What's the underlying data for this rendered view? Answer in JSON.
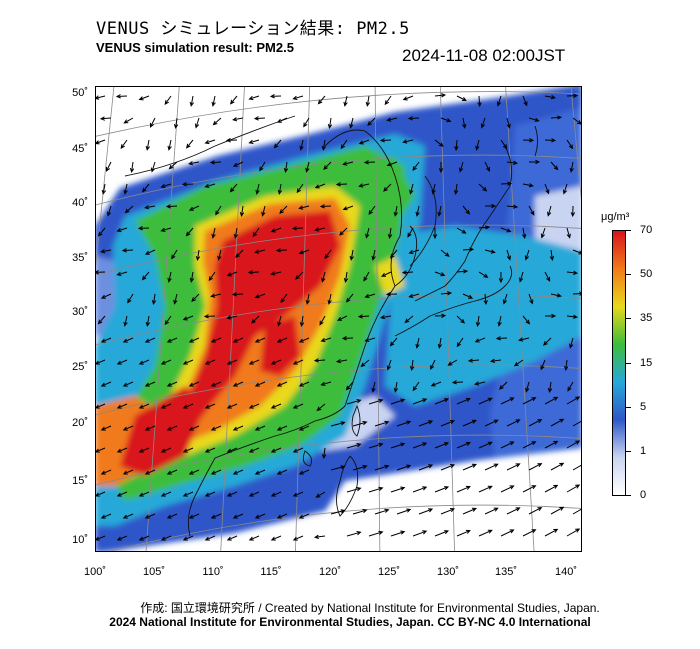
{
  "header": {
    "title_jp": "VENUS シミュレーション結果: PM2.5",
    "title_en": "VENUS simulation result: PM2.5",
    "timestamp": "2024-11-08 02:00JST"
  },
  "map": {
    "lat_labels": [
      "50˚",
      "45˚",
      "40˚",
      "35˚",
      "30˚",
      "25˚",
      "20˚",
      "15˚",
      "10˚"
    ],
    "lon_labels": [
      "100˚",
      "105˚",
      "110˚",
      "115˚",
      "120˚",
      "125˚",
      "130˚",
      "135˚",
      "140˚"
    ],
    "field_colors": {
      "very_high": "#d8141c",
      "high": "#f07a1a",
      "mid_high": "#e9d81c",
      "mid": "#3dbd3a",
      "low": "#27a9d8",
      "very_low": "#2f57c9",
      "clean": "#c9d4f2",
      "none": "#ffffff"
    }
  },
  "colorbar": {
    "unit": "μg/m³",
    "ticks": [
      "70",
      "50",
      "35",
      "15",
      "5",
      "1",
      "0"
    ]
  },
  "footer": {
    "credit_line1": "作成: 国立環境研究所 / Created by National Institute for Environmental Studies, Japan.",
    "credit_line2": "2024 National Institute for Environmental Studies, Japan. CC BY-NC 4.0 International"
  }
}
